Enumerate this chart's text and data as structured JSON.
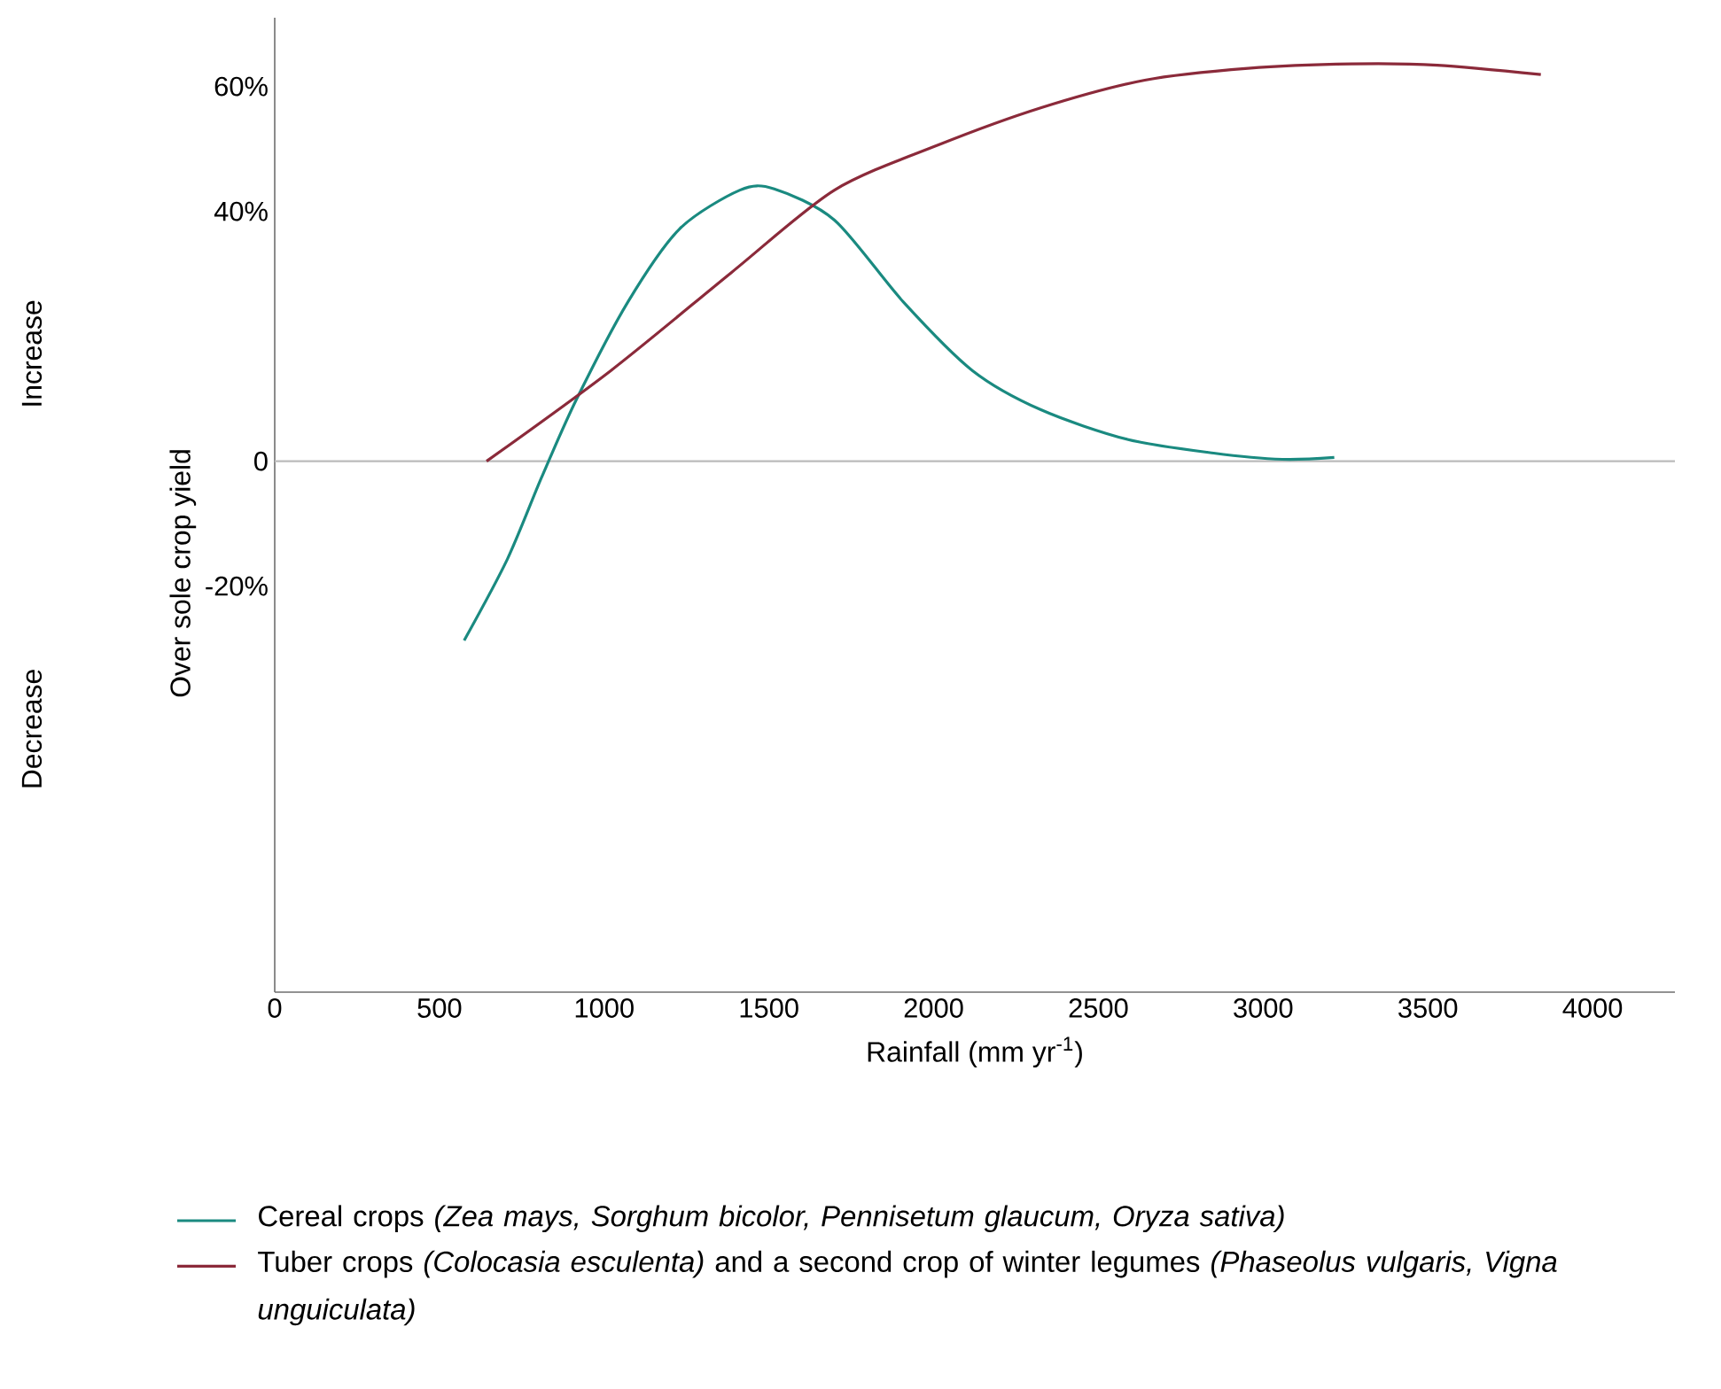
{
  "chart_data": {
    "type": "line",
    "xlabel": "Rainfall (mm yr$^{-1}$)",
    "ylabel": "Over sole crop yield",
    "annotations": [
      "Increase",
      "Decrease"
    ],
    "xlim": [
      0,
      4250
    ],
    "xticks": [
      0,
      500,
      1000,
      1500,
      2000,
      2500,
      3000,
      3500,
      4000
    ],
    "ylim": [
      -85,
      71
    ],
    "yticks": [
      {
        "value": -20,
        "label": "-20%"
      },
      {
        "value": 0,
        "label": "0"
      },
      {
        "value": 40,
        "label": "40%"
      },
      {
        "value": 60,
        "label": "60%"
      }
    ],
    "ref_lines": [
      {
        "axis": "y",
        "value": 0,
        "color": "#bbbbbb"
      }
    ],
    "legend": "bottom",
    "grid": false,
    "marker": "none",
    "line_style": "solid",
    "series": [
      {
        "name": "Cereal crops *(Zea mays, Sorghum bicolor, Pennisetum glaucum, Oryza sativa)*",
        "color": "#1a8a80",
        "x": [
          575,
          706,
          810,
          915,
          1072,
          1229,
          1412,
          1516,
          1699,
          1908,
          2118,
          2327,
          2588,
          2850,
          3059,
          3216
        ],
        "values": [
          -28.7,
          -15.7,
          -2.6,
          9.8,
          25.5,
          37.2,
          43.4,
          43.6,
          38.6,
          25.5,
          14.5,
          8.2,
          3.5,
          1.3,
          0.3,
          0.6
        ]
      },
      {
        "name": "Tuber crops *(Colocasia esculenta)* and a second crop of winter legumes *(Phaseolus vulgaris, Vigna unguiculata)*",
        "color": "#8b2a3a",
        "x": [
          643,
          1020,
          1386,
          1699,
          2013,
          2327,
          2641,
          2954,
          3268,
          3529,
          3843
        ],
        "values": [
          0,
          14.5,
          30.2,
          43.4,
          50.6,
          56.6,
          61.0,
          62.9,
          63.6,
          63.4,
          61.9
        ]
      }
    ]
  }
}
